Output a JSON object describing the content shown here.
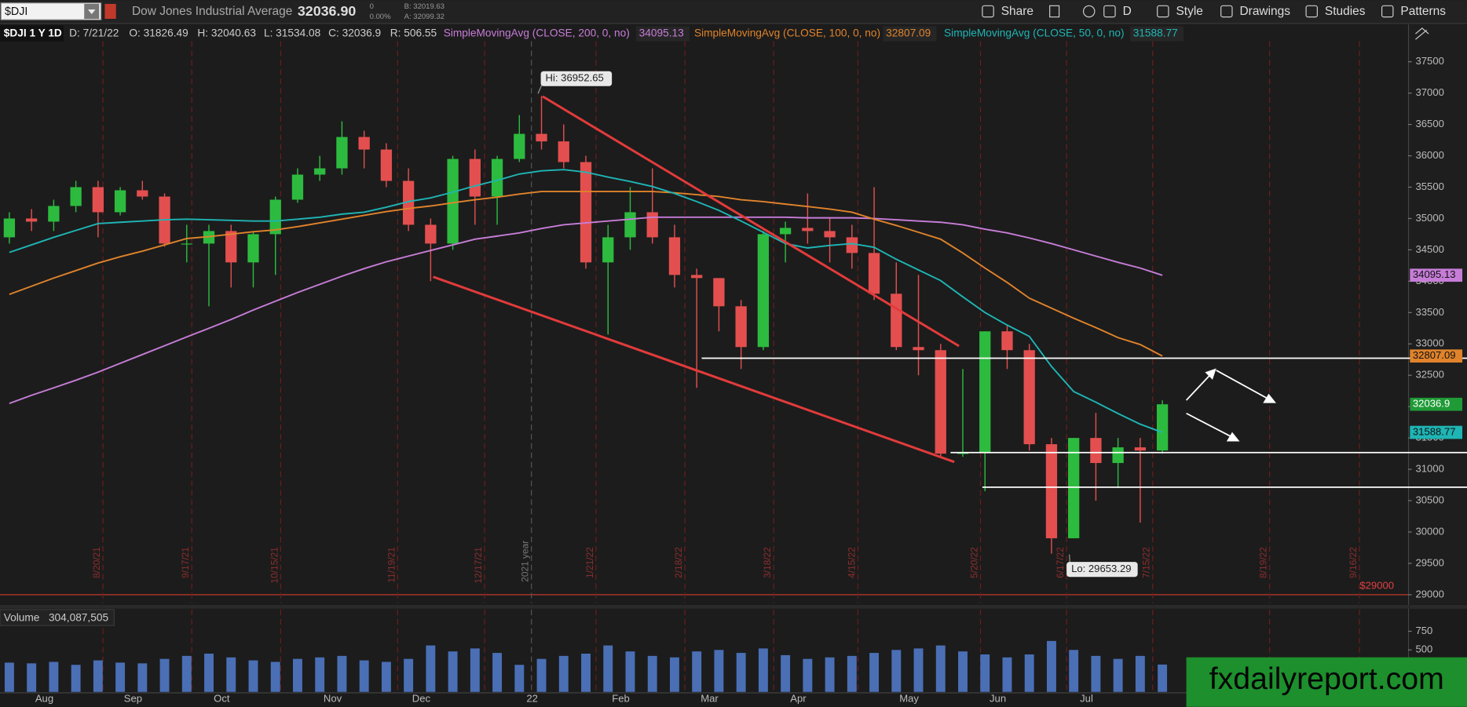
{
  "toolbar": {
    "symbol": "$DJI",
    "description": "Dow Jones Industrial Average",
    "last": "32036.90",
    "change": "0",
    "change_pct": "0.00%",
    "bid": "B: 32019.63",
    "ask": "A: 32099.32",
    "buttons": [
      "Share",
      "D",
      "Style",
      "Drawings",
      "Studies",
      "Patterns"
    ]
  },
  "info_bar": [
    "$DJI 1 Y 1D",
    "D: 7/21/22",
    "O: 31826.49",
    "H: 32040.63",
    "L: 31534.08",
    "C: 32036.9",
    "R: 506.55"
  ],
  "watermark": "fxdailyreport.com",
  "chart_data": [
    {
      "type": "candlestick",
      "categories": [
        null,
        null,
        "Aug",
        null,
        null,
        null,
        "Sep",
        null,
        null,
        null,
        "Oct",
        null,
        null,
        null,
        null,
        "Nov",
        null,
        null,
        null,
        "Dec",
        null,
        null,
        null,
        null,
        "22",
        null,
        null,
        null,
        "Feb",
        null,
        null,
        null,
        "Mar",
        null,
        null,
        null,
        "Apr",
        null,
        null,
        null,
        null,
        "May",
        null,
        null,
        null,
        "Jun",
        null,
        null,
        null,
        "Jul",
        null,
        null,
        null
      ],
      "open": [
        34700,
        35000,
        34950,
        35200,
        35500,
        35100,
        35450,
        35350,
        34600,
        34600,
        34800,
        34300,
        34750,
        35300,
        35700,
        35800,
        36300,
        36100,
        35600,
        34900,
        34600,
        35950,
        35350,
        35950,
        36350,
        36230,
        35900,
        34300,
        34700,
        35100,
        34700,
        34100,
        34050,
        33600,
        32950,
        34750,
        34850,
        34800,
        34700,
        34450,
        33800,
        32950,
        32900,
        31250,
        31260,
        33200,
        32900,
        31400,
        29900,
        31500,
        31100,
        31350,
        31300
      ],
      "high": [
        35100,
        35150,
        35300,
        35600,
        35600,
        35500,
        35600,
        35400,
        34900,
        34900,
        34900,
        34800,
        35350,
        35800,
        36000,
        36550,
        36400,
        36200,
        35800,
        35000,
        36000,
        36100,
        36000,
        36650,
        36952.65,
        36500,
        36000,
        34900,
        35500,
        35800,
        34900,
        34200,
        34000,
        33700,
        34800,
        34950,
        35400,
        35000,
        34900,
        35500,
        34300,
        34100,
        33000,
        32600,
        33200,
        33300,
        33000,
        31500,
        31500,
        31900,
        31500,
        31500,
        32100
      ],
      "low": [
        34600,
        34800,
        34800,
        35100,
        34700,
        35050,
        35300,
        34550,
        34300,
        33600,
        33900,
        33900,
        34100,
        35250,
        35600,
        35700,
        35800,
        35500,
        34800,
        34000,
        34500,
        34900,
        34900,
        35900,
        36100,
        35800,
        34200,
        33150,
        34500,
        34600,
        33900,
        32300,
        33200,
        32600,
        32900,
        34300,
        34600,
        34300,
        34200,
        33700,
        32900,
        32500,
        31200,
        31200,
        30650,
        32600,
        31300,
        29653.29,
        29900,
        30500,
        30700,
        30150,
        31250
      ],
      "close": [
        35000,
        34950,
        35200,
        35500,
        35100,
        35450,
        35350,
        34600,
        34600,
        34800,
        34300,
        34750,
        35300,
        35700,
        35800,
        36300,
        36100,
        35600,
        34900,
        34600,
        35950,
        35350,
        35950,
        36350,
        36230,
        35900,
        34300,
        34700,
        35100,
        34700,
        34100,
        34050,
        33600,
        32950,
        34750,
        34850,
        34800,
        34700,
        34450,
        33800,
        32950,
        32900,
        31250,
        31260,
        33200,
        32900,
        31400,
        29900,
        31500,
        31100,
        31350,
        31300,
        32036.9
      ],
      "up_color": "#2dbb3f",
      "down_color": "#e34f4f",
      "series": [
        {
          "name": "SimpleMovingAvg (CLOSE, 200, 0, no)",
          "color": "#c77dd8",
          "values": [
            32050,
            32180,
            32300,
            32420,
            32550,
            32690,
            32830,
            32970,
            33110,
            33250,
            33390,
            33540,
            33680,
            33820,
            33950,
            34080,
            34200,
            34310,
            34400,
            34490,
            34580,
            34670,
            34720,
            34770,
            34840,
            34900,
            34930,
            34960,
            34990,
            35020,
            35020,
            35020,
            35020,
            35020,
            35020,
            35020,
            35010,
            35010,
            35010,
            35000,
            34980,
            34960,
            34940,
            34900,
            34830,
            34770,
            34690,
            34600,
            34500,
            34400,
            34300,
            34210,
            34095.13
          ]
        },
        {
          "name": "SimpleMovingAvg (CLOSE, 100, 0, no)",
          "color": "#e0832b",
          "values": [
            33790,
            33920,
            34050,
            34170,
            34290,
            34390,
            34480,
            34580,
            34680,
            34710,
            34750,
            34790,
            34820,
            34870,
            34930,
            34990,
            35050,
            35110,
            35160,
            35200,
            35250,
            35300,
            35340,
            35390,
            35430,
            35430,
            35430,
            35430,
            35430,
            35430,
            35410,
            35380,
            35350,
            35300,
            35270,
            35230,
            35190,
            35150,
            35100,
            34990,
            34890,
            34780,
            34670,
            34450,
            34210,
            33980,
            33730,
            33570,
            33410,
            33260,
            33100,
            32990,
            32807.09
          ]
        },
        {
          "name": "SimpleMovingAvg (CLOSE, 50, 0, no)",
          "color": "#1fb5b5",
          "values": [
            34460,
            34580,
            34700,
            34810,
            34920,
            34940,
            34960,
            34980,
            34990,
            34980,
            34970,
            34960,
            34960,
            34990,
            35020,
            35070,
            35100,
            35180,
            35270,
            35330,
            35420,
            35520,
            35610,
            35710,
            35760,
            35780,
            35740,
            35660,
            35590,
            35510,
            35400,
            35270,
            35130,
            34960,
            34780,
            34600,
            34530,
            34570,
            34600,
            34540,
            34350,
            34180,
            34010,
            33750,
            33500,
            33300,
            33120,
            32640,
            32240,
            32070,
            31890,
            31720,
            31588.77
          ]
        }
      ],
      "ylim": [
        28866,
        38095
      ],
      "yticks": [
        29000,
        29500,
        30000,
        30500,
        31000,
        31500,
        32000,
        32500,
        33000,
        33500,
        34000,
        34500,
        35000,
        35500,
        36000,
        36500,
        37000,
        37500
      ],
      "level": {
        "value": 29000,
        "label": "$29000"
      },
      "annotations": [
        "Hi: 36952.65",
        "Lo: 29653.29"
      ],
      "date_markers": [
        "8/20/21",
        "9/17/21",
        "10/15/21",
        "11/19/21",
        "12/17/21",
        "2021 year",
        "1/21/22",
        "2/18/22",
        "3/18/22",
        "4/15/22",
        "5/20/22",
        "6/17/22",
        "7/15/22",
        "8/19/22",
        "9/16/22"
      ]
    },
    {
      "type": "bar",
      "title": "Volume",
      "color": "#4a6fb5",
      "values": [
        330,
        320,
        340,
        300,
        360,
        330,
        320,
        380,
        420,
        450,
        400,
        360,
        340,
        380,
        400,
        420,
        360,
        340,
        380,
        560,
        480,
        520,
        460,
        300,
        380,
        420,
        450,
        560,
        480,
        420,
        400,
        480,
        500,
        460,
        520,
        430,
        380,
        400,
        420,
        460,
        500,
        520,
        560,
        480,
        440,
        400,
        440,
        620,
        500,
        420,
        380,
        420,
        304.087505
      ],
      "value_labels": [
        null,
        null,
        null,
        null,
        null,
        null,
        null,
        null,
        null,
        null,
        null,
        null,
        null,
        null,
        null,
        null,
        null,
        null,
        null,
        null,
        null,
        null,
        null,
        null,
        null,
        null,
        null,
        null,
        null,
        null,
        null,
        null,
        null,
        null,
        null,
        null,
        null,
        null,
        null,
        null,
        null,
        null,
        null,
        null,
        null,
        null,
        null,
        null,
        null,
        null,
        null,
        null,
        "304,087,505"
      ],
      "ylim": [
        0,
        1040
      ],
      "yticks": [
        500,
        750
      ]
    }
  ]
}
